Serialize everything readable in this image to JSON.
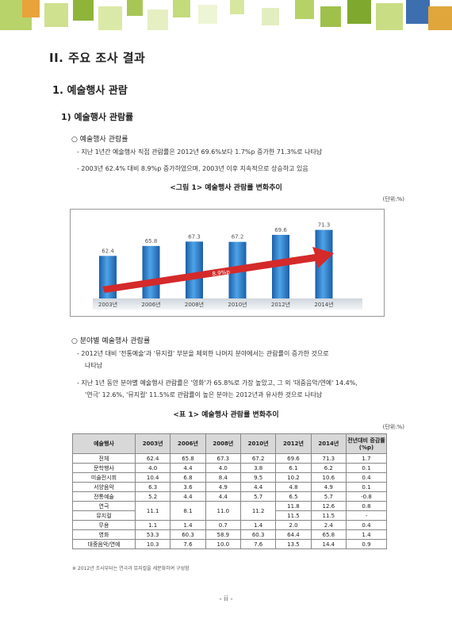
{
  "headings": {
    "h1": "II. 주요 조사 결과",
    "h2": "1. 예술행사 관람",
    "h3": "1) 예술행사 관람률"
  },
  "section1": {
    "bullet": "○ 예술행사 관람률",
    "lines": [
      "- 지난 1년간 예술행사 직접 관람률은 2012년 69.6%보다 1.7%p 증가한 71.3%로 나타남",
      "- 2003년 62.4% 대비 8.9%p 증가하였으며, 2003년 이후 지속적으로 상승하고 있음"
    ]
  },
  "figure": {
    "caption": "<그림 1> 예술행사 관람률 변화추이",
    "unit": "(단위:%)",
    "arrow_label": "8.9%p"
  },
  "chart_data": {
    "type": "bar",
    "categories": [
      "2003년",
      "2006년",
      "2008년",
      "2010년",
      "2012년",
      "2014년"
    ],
    "values": [
      62.4,
      65.8,
      67.3,
      67.2,
      69.6,
      71.3
    ],
    "value_labels": [
      "62.4",
      "65.8",
      "67.3",
      "67.2",
      "69.6",
      "71.3"
    ],
    "annotation": "8.9%p",
    "bar_color": "#2a7fd0",
    "arrow_color": "#d42a2a",
    "ylim": [
      50,
      75
    ]
  },
  "section2": {
    "bullet": "○ 분야별 예술행사 관람률",
    "lines": [
      "- 2012년 대비 '전통예술'과 '뮤지컬' 부분을 제외한 나머지 분야에서는 관람률이 증가한 것으로",
      "나타남",
      "- 지난 1년 동안 분야별 예술행사 관람률은 '영화'가 65.8%로 가장 높았고, 그 외 '대중음악/연예' 14.4%,",
      "'연극' 12.6%, '뮤지컬' 11.5%로 관람률이 높은 분야는 2012년과 유사한 것으로 나타남"
    ]
  },
  "table": {
    "caption": "<표 1> 예술행사 관람률 변화추이",
    "unit": "(단위:%)",
    "headers": [
      "예술행사",
      "2003년",
      "2006년",
      "2008년",
      "2010년",
      "2012년",
      "2014년",
      "전년대비 증감률(%p)"
    ],
    "rows": [
      [
        "전체",
        "62.4",
        "65.8",
        "67.3",
        "67.2",
        "69.6",
        "71.3",
        "1.7"
      ],
      [
        "문학행사",
        "4.0",
        "4.4",
        "4.0",
        "3.8",
        "6.1",
        "6.2",
        "0.1"
      ],
      [
        "미술전시회",
        "10.4",
        "6.8",
        "8.4",
        "9.5",
        "10.2",
        "10.6",
        "0.4"
      ],
      [
        "서양음악",
        "6.3",
        "3.6",
        "4.9",
        "4.4",
        "4.8",
        "4.9",
        "0.1"
      ],
      [
        "전통예술",
        "5.2",
        "4.4",
        "4.4",
        "5.7",
        "6.5",
        "5.7",
        "-0.8"
      ]
    ],
    "merged": {
      "theater_label": "연극",
      "musical_label": "뮤지컬",
      "shared": [
        "11.1",
        "8.1",
        "11.0",
        "11.2"
      ],
      "theater_2012": "11.8",
      "theater_2014": "12.6",
      "theater_change": "0.8",
      "musical_2012": "11.5",
      "musical_2014": "11.5",
      "musical_change": "-"
    },
    "rows2": [
      [
        "무용",
        "1.1",
        "1.4",
        "0.7",
        "1.4",
        "2.0",
        "2.4",
        "0.4"
      ],
      [
        "영화",
        "53.3",
        "60.3",
        "58.9",
        "60.3",
        "64.4",
        "65.8",
        "1.4"
      ],
      [
        "대중음악/연예",
        "10.3",
        "7.6",
        "10.0",
        "7.6",
        "13.5",
        "14.4",
        "0.9"
      ]
    ],
    "note": "※ 2012년 조사부터는 연극과 뮤지컬을 세분화하여 구성함"
  },
  "page_number": "- ii -"
}
